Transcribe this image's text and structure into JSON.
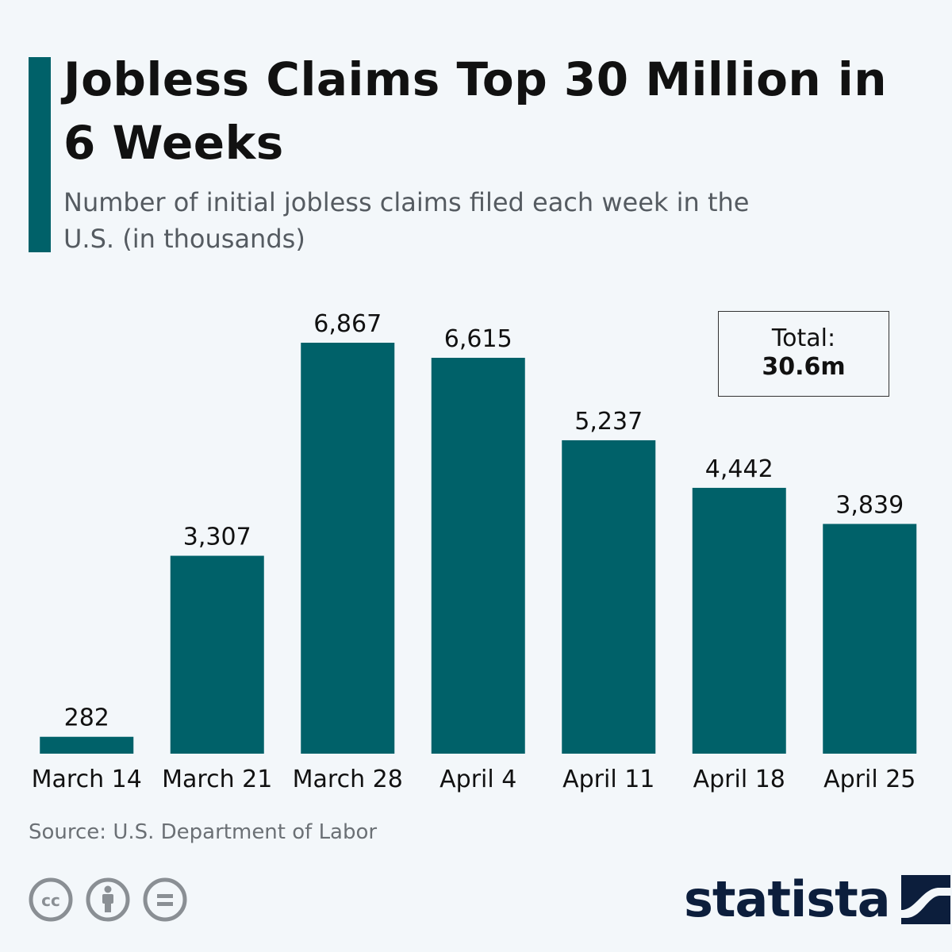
{
  "header": {
    "title": "Jobless Claims Top 30 Million in 6 Weeks",
    "subtitle": "Number of initial jobless claims filed each week in the U.S. (in thousands)"
  },
  "total": {
    "label": "Total:",
    "value": "30.6m"
  },
  "source": "Source: U.S. Department of Labor",
  "brand": {
    "name": "statista"
  },
  "colors": {
    "bar": "#006169",
    "background": "#f3f7fa",
    "accent": "#006169"
  },
  "chart_data": {
    "type": "bar",
    "title": "Jobless Claims Top 30 Million in 6 Weeks",
    "subtitle": "Number of initial jobless claims filed each week in the U.S. (in thousands)",
    "categories": [
      "March 14",
      "March 21",
      "March 28",
      "April 4",
      "April 11",
      "April 18",
      "April 25"
    ],
    "values": [
      282,
      3307,
      6867,
      6615,
      5237,
      4442,
      3839
    ],
    "value_labels": [
      "282",
      "3,307",
      "6,867",
      "6,615",
      "5,237",
      "4,442",
      "3,839"
    ],
    "xlabel": "",
    "ylabel": "",
    "ylim": [
      0,
      6867
    ],
    "grid": false,
    "legend": "none"
  }
}
